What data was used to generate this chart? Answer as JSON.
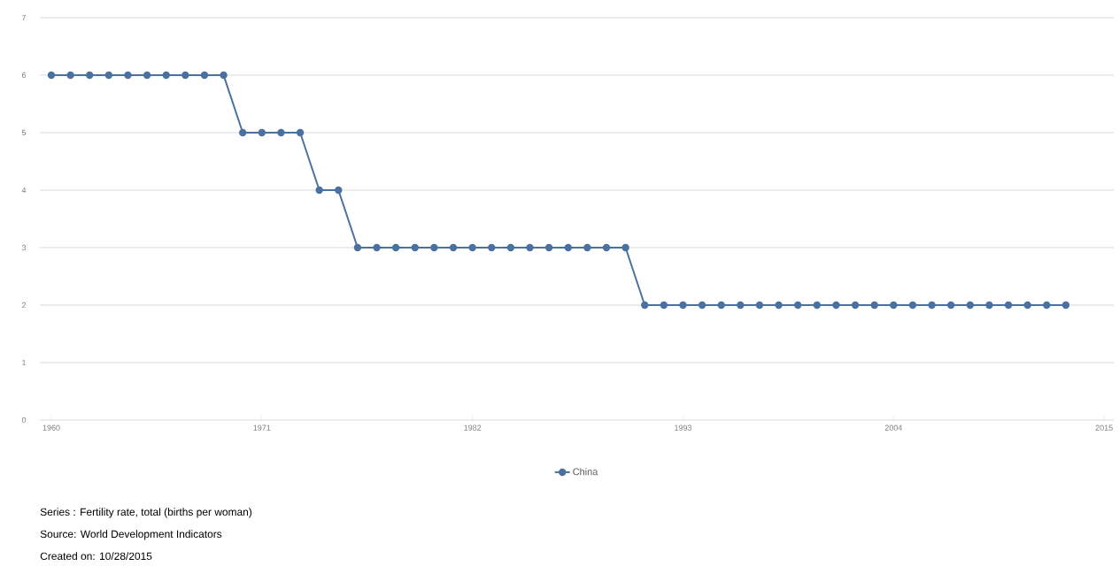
{
  "chart_data": {
    "type": "line",
    "x": [
      1960,
      1961,
      1962,
      1963,
      1964,
      1965,
      1966,
      1967,
      1968,
      1969,
      1970,
      1971,
      1972,
      1973,
      1974,
      1975,
      1976,
      1977,
      1978,
      1979,
      1980,
      1981,
      1982,
      1983,
      1984,
      1985,
      1986,
      1987,
      1988,
      1989,
      1990,
      1991,
      1992,
      1993,
      1994,
      1995,
      1996,
      1997,
      1998,
      1999,
      2000,
      2001,
      2002,
      2003,
      2004,
      2005,
      2006,
      2007,
      2008,
      2009,
      2010,
      2011,
      2012,
      2013
    ],
    "series": [
      {
        "name": "China",
        "color": "#4a72a0",
        "values": [
          6,
          6,
          6,
          6,
          6,
          6,
          6,
          6,
          6,
          6,
          5,
          5,
          5,
          5,
          4,
          4,
          3,
          3,
          3,
          3,
          3,
          3,
          3,
          3,
          3,
          3,
          3,
          3,
          3,
          3,
          3,
          2,
          2,
          2,
          2,
          2,
          2,
          2,
          2,
          2,
          2,
          2,
          2,
          2,
          2,
          2,
          2,
          2,
          2,
          2,
          2,
          2,
          2,
          2
        ]
      }
    ],
    "xlim": [
      1959.4,
      2015.5
    ],
    "xticks": [
      1960,
      1971,
      1982,
      1993,
      2004,
      2015
    ],
    "ylim": [
      0,
      7
    ],
    "yticks": [
      0,
      1,
      2,
      3,
      4,
      5,
      6,
      7
    ],
    "grid": "y",
    "legend": "bottom",
    "marker": "circle",
    "line_style": "solid",
    "annotations": [
      "Series : Fertility rate, total (births per woman)",
      "Source: World Development Indicators",
      "Created on: 10/28/2015"
    ]
  }
}
